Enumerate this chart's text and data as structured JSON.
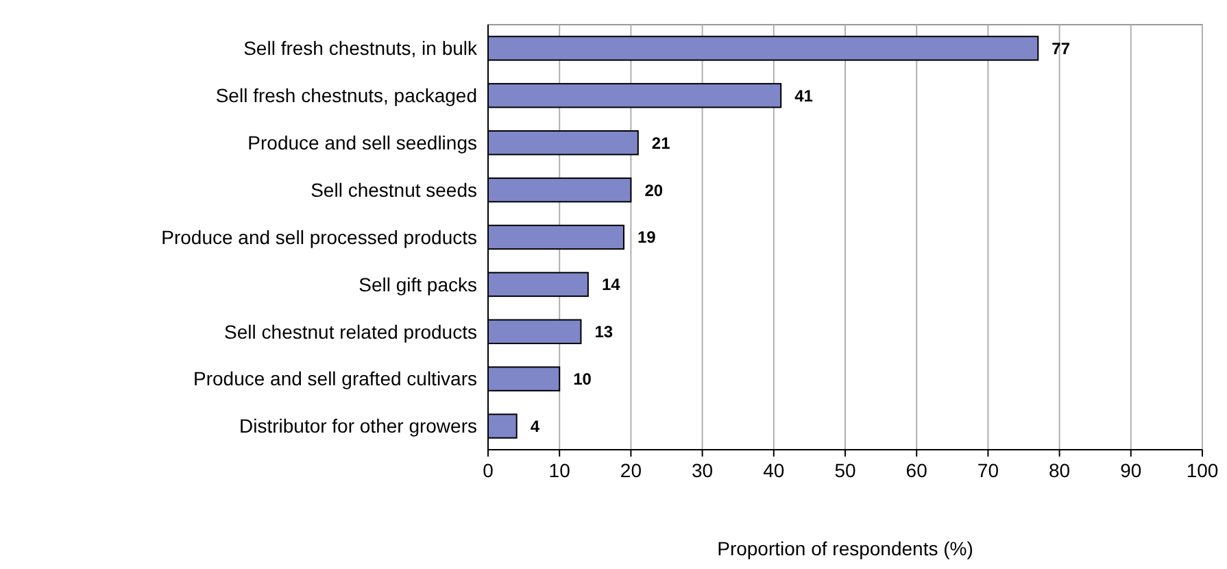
{
  "chart_data": {
    "type": "bar",
    "orientation": "horizontal",
    "xlabel": "Proportion of respondents (%)",
    "categories": [
      "Sell fresh chestnuts, in bulk",
      "Sell fresh chestnuts, packaged",
      "Produce and  sell seedlings",
      "Sell chestnut seeds",
      "Produce and sell processed products",
      "Sell gift packs",
      "Sell chestnut related products",
      "Produce and sell grafted cultivars",
      "Distributor for other growers"
    ],
    "values": [
      77,
      41,
      21,
      20,
      19,
      14,
      13,
      10,
      4
    ],
    "color": "#7f87c9",
    "xlim": [
      0,
      100
    ],
    "xticks": [
      0,
      10,
      20,
      30,
      40,
      50,
      60,
      70,
      80,
      90,
      100
    ],
    "grid": "x",
    "data_labels": true
  }
}
